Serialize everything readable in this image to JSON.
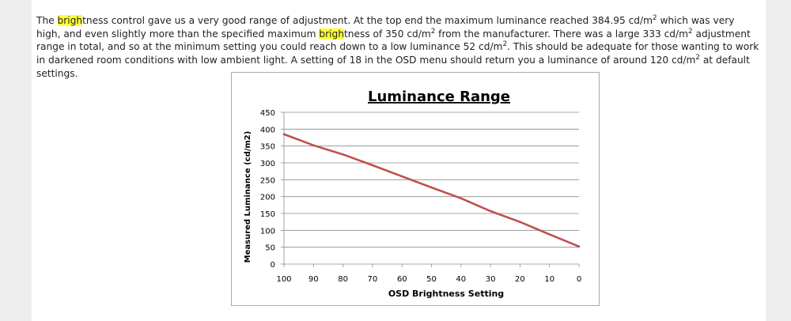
{
  "article": {
    "segments": [
      {
        "t": "The "
      },
      {
        "t": "brigh",
        "hl": true
      },
      {
        "t": "tness control gave us a very good range of adjustment. At the top end the maximum luminance reached 384.95 cd/m"
      },
      {
        "t": "2",
        "sup": true
      },
      {
        "t": " which was very high, and even slightly more than the specified maximum "
      },
      {
        "t": "brigh",
        "hl": true
      },
      {
        "t": "tness of 350 cd/m"
      },
      {
        "t": "2",
        "sup": true
      },
      {
        "t": " from the manufacturer. There was a large 333 cd/m"
      },
      {
        "t": "2",
        "sup": true
      },
      {
        "t": " adjustment range in total, and so at the minimum setting you could reach down to a low luminance 52 cd/m"
      },
      {
        "t": "2",
        "sup": true
      },
      {
        "t": ". This should be adequate for those wanting to work in darkened room conditions with low ambient light. A setting of 18 in the OSD menu should return you a luminance of around 120 cd/m"
      },
      {
        "t": "2",
        "sup": true
      },
      {
        "t": " at default settings."
      }
    ]
  },
  "chart_data": {
    "type": "line",
    "title": "Luminance Range",
    "xlabel": "OSD Brightness Setting",
    "ylabel": "Measured Luminance (cd/m2)",
    "x_reversed": true,
    "xlim": [
      0,
      100
    ],
    "ylim": [
      0,
      450
    ],
    "x_ticks": [
      "100",
      "90",
      "80",
      "70",
      "60",
      "50",
      "40",
      "30",
      "20",
      "10",
      "0"
    ],
    "y_ticks": [
      "0",
      "50",
      "100",
      "150",
      "200",
      "250",
      "300",
      "350",
      "400",
      "450"
    ],
    "grid": "horizontal",
    "legend": "none",
    "line_color": "#c0504d",
    "series": [
      {
        "x": [
          100,
          90,
          80,
          70,
          60,
          50,
          40,
          30,
          20,
          10,
          0
        ],
        "values": [
          385,
          352,
          325,
          293,
          260,
          227,
          195,
          157,
          125,
          88,
          52
        ]
      }
    ]
  }
}
